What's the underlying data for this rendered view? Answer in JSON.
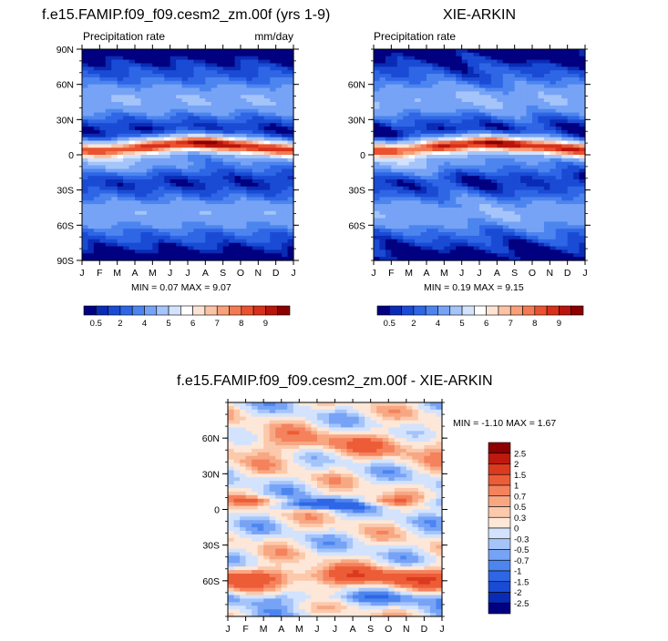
{
  "figure": {
    "colors": [
      "#000080",
      "#0a2bb5",
      "#1a4bd4",
      "#2e66e6",
      "#4d85ef",
      "#76a3f5",
      "#a5c4fa",
      "#d3e3fd",
      "#ffffff",
      "#fde3d3",
      "#fbc3a6",
      "#f8a07a",
      "#f47a53",
      "#ea5230",
      "#d8301a",
      "#b8150c",
      "#8c0000"
    ],
    "diff_colors": [
      "#000080",
      "#0a2bb5",
      "#1a4bd4",
      "#2e66e6",
      "#4d85ef",
      "#76a3f5",
      "#a5c4fa",
      "#d3e3fd",
      "#fde7d8",
      "#fbc9ac",
      "#f8a783",
      "#f4825c",
      "#ec5c37",
      "#dc3a1f",
      "#bd1a0f",
      "#8c0000"
    ]
  },
  "chart_data": [
    {
      "type": "heatmap",
      "title": "f.e15.FAMIP.f09_f09.cesm2_zm.00f (yrs 1-9)",
      "left_label": "Precipitation rate",
      "right_label": "mm/day",
      "x_ticks": [
        "J",
        "F",
        "M",
        "A",
        "M",
        "J",
        "J",
        "A",
        "S",
        "O",
        "N",
        "D",
        "J"
      ],
      "y_ticks": [
        "90N",
        "60N",
        "30N",
        "0",
        "30S",
        "60S",
        "90S"
      ],
      "min_max_text": "MIN =  0.07 MAX =   9.07",
      "min": 0.07,
      "max": 9.07,
      "colorbar_labels": [
        "0.5",
        "2",
        "4",
        "5",
        "6",
        "7",
        "8",
        "9"
      ],
      "ylim": [
        -90,
        90
      ]
    },
    {
      "type": "heatmap",
      "title": "XIE-ARKIN",
      "left_label": "Precipitation rate",
      "x_ticks": [
        "J",
        "F",
        "M",
        "A",
        "M",
        "J",
        "J",
        "A",
        "S",
        "O",
        "N",
        "D",
        "J"
      ],
      "y_ticks": [
        "60N",
        "30N",
        "0",
        "30S",
        "60S"
      ],
      "min_max_text": "MIN =  0.19 MAX =   9.15",
      "min": 0.19,
      "max": 9.15,
      "colorbar_labels": [
        "0.5",
        "2",
        "4",
        "5",
        "6",
        "7",
        "8",
        "9"
      ],
      "ylim": [
        -90,
        90
      ]
    },
    {
      "type": "heatmap",
      "title": "f.e15.FAMIP.f09_f09.cesm2_zm.00f - XIE-ARKIN",
      "x_ticks": [
        "J",
        "F",
        "M",
        "A",
        "M",
        "J",
        "J",
        "A",
        "S",
        "O",
        "N",
        "D",
        "J"
      ],
      "y_ticks": [
        "60N",
        "30N",
        "0",
        "30S",
        "60S"
      ],
      "min_max_text": "MIN =  -1.10 MAX =   1.67",
      "min": -1.1,
      "max": 1.67,
      "colorbar_labels": [
        "2.5",
        "2",
        "1.5",
        "1",
        "0.7",
        "0.5",
        "0.3",
        "0",
        "-0.3",
        "-0.5",
        "-0.7",
        "-1",
        "-1.5",
        "-2",
        "-2.5"
      ],
      "ylim": [
        -90,
        90
      ]
    }
  ]
}
